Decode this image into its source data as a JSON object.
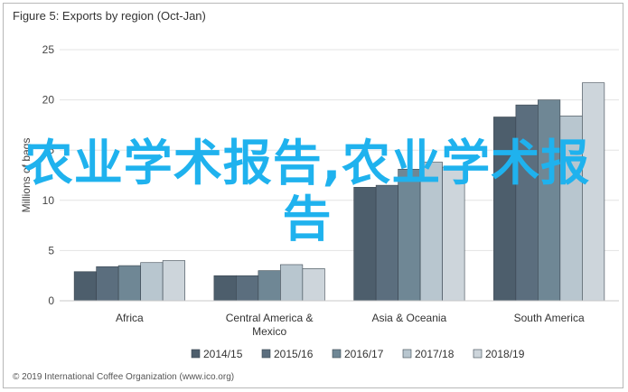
{
  "title": "Figure 5: Exports by region (Oct-Jan)",
  "source": "© 2019 International Coffee Organization (www.ico.org)",
  "watermark": "农业学术报告,农业学术报告",
  "colors": {
    "accent": "#1fb2ee",
    "grid": "#e3e3e3",
    "axis": "#c8c8c8",
    "series": [
      "#4d5e6c",
      "#5b6e7e",
      "#6f8795",
      "#b8c6cf",
      "#cdd5db"
    ]
  },
  "chart_data": {
    "type": "bar",
    "title": "Figure 5: Exports by region (Oct-Jan)",
    "ylabel": "Millions of bags",
    "ylim": [
      0,
      25
    ],
    "yticks": [
      0,
      5,
      10,
      15,
      20,
      25
    ],
    "grid": true,
    "legend": "bottom",
    "categories": [
      "Africa",
      "Central America & Mexico",
      "Asia & Oceania",
      "South America"
    ],
    "category_lines": [
      [
        "Africa"
      ],
      [
        "Central America &",
        "Mexico"
      ],
      [
        "Asia & Oceania"
      ],
      [
        "South America"
      ]
    ],
    "series": [
      {
        "name": "2014/15",
        "values": [
          2.9,
          2.5,
          11.3,
          18.3
        ]
      },
      {
        "name": "2015/16",
        "values": [
          3.4,
          2.5,
          11.5,
          19.5
        ]
      },
      {
        "name": "2016/17",
        "values": [
          3.5,
          3.0,
          13.1,
          20.0
        ]
      },
      {
        "name": "2017/18",
        "values": [
          3.8,
          3.6,
          13.8,
          18.4
        ]
      },
      {
        "name": "2018/19",
        "values": [
          4.0,
          3.2,
          13.3,
          21.7
        ]
      }
    ]
  }
}
